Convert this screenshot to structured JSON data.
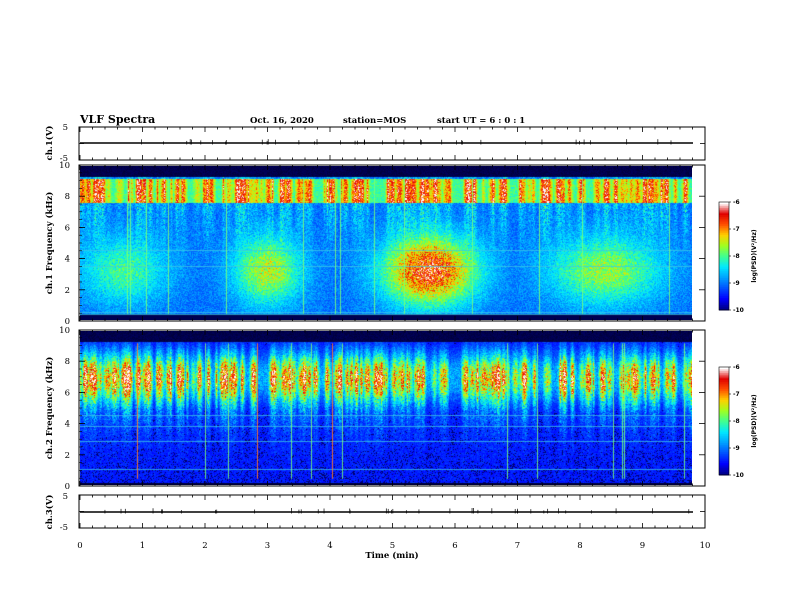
{
  "header": {
    "title": "VLF Spectra",
    "date": "Oct. 16, 2020",
    "station": "station=MOS",
    "start": "start UT =  6 : 0 : 1"
  },
  "colors": {
    "cmap": [
      "#000080",
      "#0000ff",
      "#0050ff",
      "#00a0ff",
      "#00e8ff",
      "#40ff90",
      "#a0ff20",
      "#ffd000",
      "#ff5000",
      "#e00000",
      "#ffffff"
    ],
    "background": "#00002a"
  },
  "chart_data": [
    {
      "type": "line",
      "ylabel": "ch.1(V)",
      "ylim": [
        -5,
        5
      ],
      "yticks": [
        "5",
        "-5"
      ],
      "x": [
        0,
        10
      ],
      "values": [
        0,
        0
      ]
    },
    {
      "type": "heatmap",
      "ylabel": "ch.1  Frequency  (kHz)",
      "ylim": [
        0,
        10
      ],
      "yticks": [
        "0",
        "2",
        "4",
        "6",
        "8",
        "10"
      ],
      "colorbar": {
        "label": "log(PSD)(V²/Hz)",
        "ticks": [
          "-6",
          "-7",
          "-8",
          "-9",
          "-10"
        ],
        "range": [
          -10,
          -6
        ]
      }
    },
    {
      "type": "heatmap",
      "ylabel": "ch.2  Frequency  (kHz)",
      "ylim": [
        0,
        10
      ],
      "yticks": [
        "0",
        "2",
        "4",
        "6",
        "8",
        "10"
      ],
      "colorbar": {
        "label": "log(PSD)(V²/Hz)",
        "ticks": [
          "-6",
          "-7",
          "-8",
          "-9",
          "-10"
        ],
        "range": [
          -10,
          -6
        ]
      }
    },
    {
      "type": "line",
      "ylabel": "ch.3(V)",
      "ylim": [
        -5,
        5
      ],
      "yticks": [
        "5",
        "-5"
      ],
      "x": [
        0,
        10
      ],
      "values": [
        0,
        0
      ]
    }
  ],
  "xaxis": {
    "label": "Time  (min)",
    "xlim": [
      0,
      10
    ],
    "ticks": [
      "0",
      "1",
      "2",
      "3",
      "4",
      "5",
      "6",
      "7",
      "8",
      "9",
      "10"
    ]
  }
}
